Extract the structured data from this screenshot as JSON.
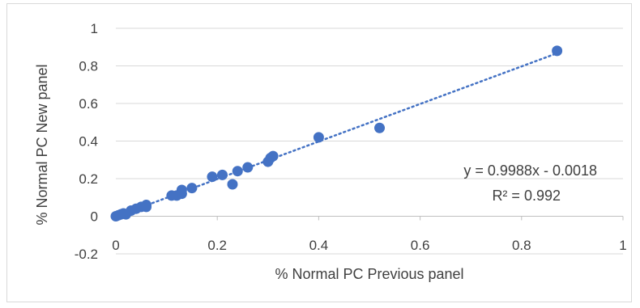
{
  "chart_data": {
    "type": "scatter",
    "xlabel": "% Normal PC Previous panel",
    "ylabel": "% Normal PC New panel",
    "xlim": [
      0,
      1
    ],
    "ylim": [
      -0.2,
      1
    ],
    "xticks": [
      "0",
      "0.2",
      "0.4",
      "0.6",
      "0.8",
      "1"
    ],
    "yticks": [
      "-0.2",
      "0",
      "0.2",
      "0.4",
      "0.6",
      "0.8",
      "1"
    ],
    "grid": "horizontal",
    "legend": "none",
    "marker_color": "#4472C4",
    "series": [
      {
        "points": [
          {
            "x": 0.0,
            "y": 0.0
          },
          {
            "x": 0.005,
            "y": 0.005
          },
          {
            "x": 0.01,
            "y": 0.01
          },
          {
            "x": 0.015,
            "y": 0.015
          },
          {
            "x": 0.02,
            "y": 0.01
          },
          {
            "x": 0.03,
            "y": 0.03
          },
          {
            "x": 0.04,
            "y": 0.04
          },
          {
            "x": 0.05,
            "y": 0.05
          },
          {
            "x": 0.06,
            "y": 0.06
          },
          {
            "x": 0.06,
            "y": 0.05
          },
          {
            "x": 0.11,
            "y": 0.11
          },
          {
            "x": 0.12,
            "y": 0.11
          },
          {
            "x": 0.13,
            "y": 0.14
          },
          {
            "x": 0.13,
            "y": 0.12
          },
          {
            "x": 0.15,
            "y": 0.15
          },
          {
            "x": 0.19,
            "y": 0.21
          },
          {
            "x": 0.21,
            "y": 0.22
          },
          {
            "x": 0.23,
            "y": 0.17
          },
          {
            "x": 0.24,
            "y": 0.24
          },
          {
            "x": 0.26,
            "y": 0.26
          },
          {
            "x": 0.3,
            "y": 0.29
          },
          {
            "x": 0.305,
            "y": 0.31
          },
          {
            "x": 0.31,
            "y": 0.32
          },
          {
            "x": 0.4,
            "y": 0.42
          },
          {
            "x": 0.52,
            "y": 0.47
          },
          {
            "x": 0.87,
            "y": 0.88
          }
        ]
      }
    ],
    "trendline": {
      "style": "dotted",
      "slope": 0.9988,
      "intercept": -0.0018,
      "x_range": [
        0,
        0.87
      ],
      "equation_label": "y = 0.9988x - 0.0018",
      "r2_label": "R² = 0.992"
    }
  }
}
